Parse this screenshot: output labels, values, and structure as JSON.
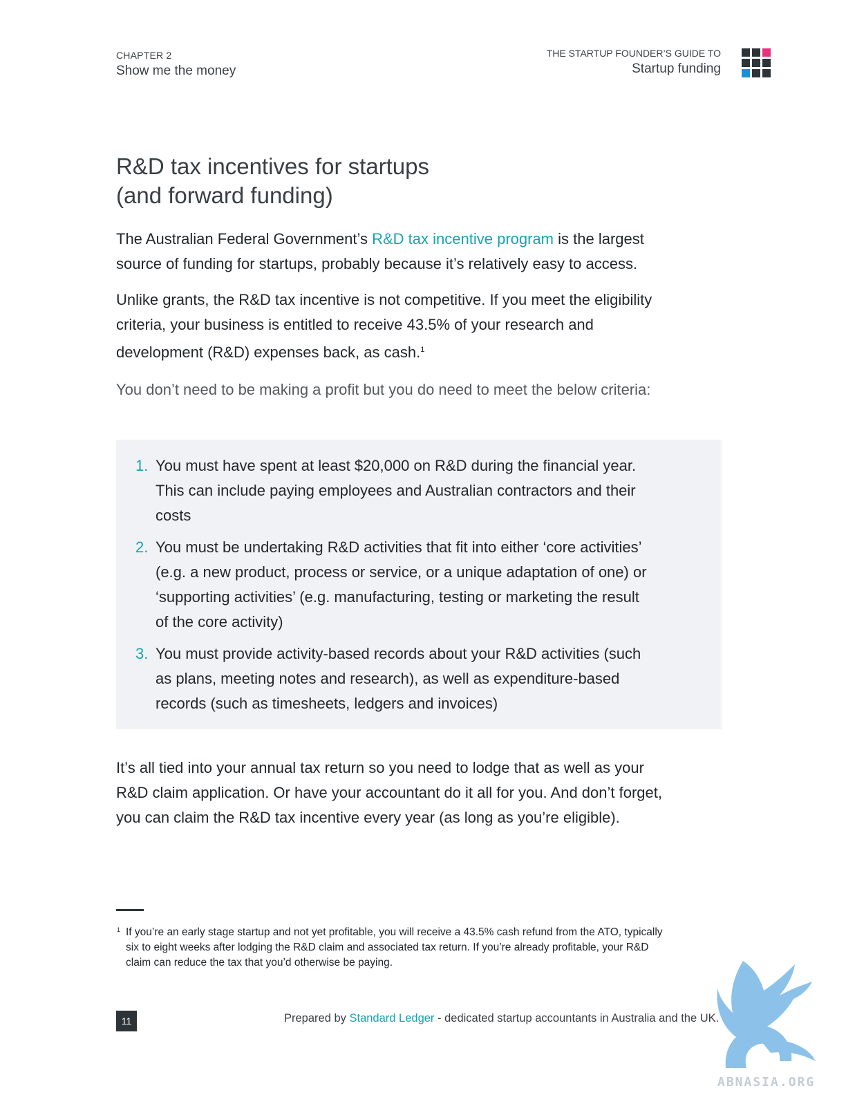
{
  "header": {
    "chapter_label": "CHAPTER 2",
    "chapter_title": "Show me the money",
    "guide_label": "THE STARTUP FOUNDER’S GUIDE TO",
    "guide_title": "Startup funding",
    "logo_colors": [
      "#2e3338",
      "#2e3338",
      "#e8327c",
      "#2e3338",
      "#2e3338",
      "#2e3338",
      "#1b8fd6",
      "#2e3338",
      "#2e3338"
    ]
  },
  "headline": {
    "line1": "R&D tax incentives for startups",
    "line2": "(and forward funding)"
  },
  "intro": {
    "before_link": "The Australian Federal Government’s ",
    "link": "R&D tax incentive program",
    "after_link": " is the largest source of funding for startups, probably because it’s relatively easy to access."
  },
  "eligibility": {
    "text": "Unlike grants, the R&D tax incentive is not competitive. If you meet the eligibility criteria, your business is entitled to receive 43.5% of your research and development (R&D) expenses back, as cash.",
    "footnote_ref": "1"
  },
  "criteria_intro": "You don’t need to be making a profit but you do need to meet the below criteria:",
  "criteria": [
    {
      "num": "1.",
      "text": "You must have spent at least $20,000 on R&D during the financial year. This can include paying employees and Australian contractors and their costs"
    },
    {
      "num": "2.",
      "text": "You must be undertaking R&D activities that fit into either ‘core activities’ (e.g. a new product, process or service, or a unique adaptation of one) or ‘supporting activities’ (e.g. manufacturing, testing or marketing the result of the core activity)"
    },
    {
      "num": "3.",
      "text": "You must provide activity-based records about your R&D activities (such as plans, meeting notes and research), as well as expenditure-based records (such as timesheets, ledgers and invoices)"
    }
  ],
  "closing": "It’s all tied into your annual tax return so you need to lodge that as well as your R&D claim application. Or have your accountant do it all for you. And don’t forget, you can claim the R&D tax incentive every year (as long as you’re eligible).",
  "footnote": {
    "mark": "1",
    "text": "If you’re an early stage startup and not yet profitable, you will receive a 43.5% cash refund from the ATO, typically six to eight weeks after lodging the R&D claim and associated tax return. If you’re already profitable, your R&D claim can reduce the tax that you’d otherwise be paying."
  },
  "footer": {
    "page_number": "11",
    "prepared_by": "Prepared by ",
    "brand": "Standard Ledger",
    "tagline": " - dedicated startup accountants in Australia and the UK."
  },
  "watermark": {
    "text": "ABNASIA.ORG",
    "color": "#79b8e6"
  }
}
